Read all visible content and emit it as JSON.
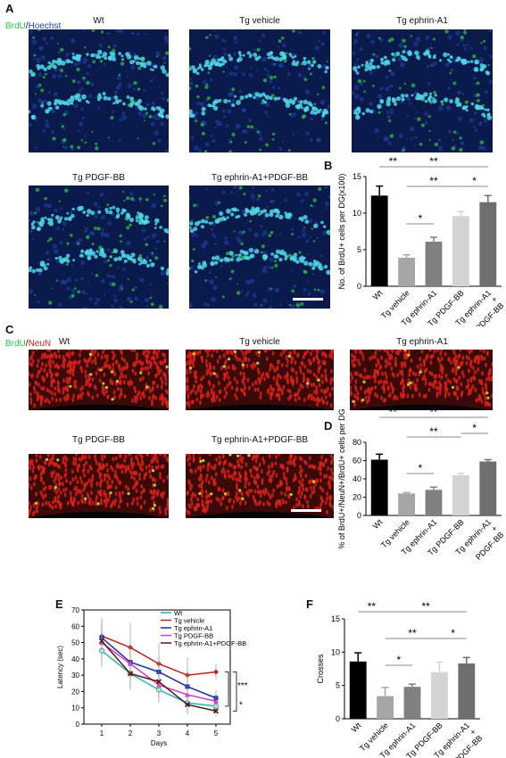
{
  "panels": {
    "A": {
      "label": "A",
      "stain": {
        "green": "BrdU",
        "sep": "/",
        "blue": "Hoechst"
      },
      "titles": [
        "Wt",
        "Tg vehicle",
        "Tg ephrin-A1",
        "Tg PDGF-BB",
        "Tg ephrin-A1+PDGF-BB"
      ]
    },
    "C": {
      "label": "C",
      "stain": {
        "green": "BrdU",
        "sep": "/",
        "red": "NeuN"
      },
      "titles": [
        "Wt",
        "Tg vehicle",
        "Tg ephrin-A1",
        "Tg PDGF-BB",
        "Tg ephrin-A1+PDGF-BB"
      ]
    },
    "B": {
      "label": "B"
    },
    "D": {
      "label": "D"
    },
    "E": {
      "label": "E"
    },
    "F": {
      "label": "F"
    }
  },
  "colors": {
    "hoechst_bg": "#0a1a4a",
    "brdu_green": "#2ecc40",
    "neun_red": "#d8201a",
    "bar_colors": [
      "#000000",
      "#a6a6a6",
      "#808080",
      "#d4d4d4",
      "#6e6e6e"
    ]
  },
  "chart_data": [
    {
      "id": "B",
      "type": "bar",
      "categories": [
        "Wt",
        "Tg vehicle",
        "Tg ephrin-A1",
        "Tg PDGF-BB",
        "Tg ephrin-A1\n+\nPDGF-BB"
      ],
      "values": [
        12.4,
        3.9,
        6.1,
        9.6,
        11.5
      ],
      "errors": [
        1.3,
        0.4,
        0.6,
        0.6,
        0.9
      ],
      "ylabel": "No. of BrdU+ cells per DG(x100)",
      "ylim": [
        0,
        15
      ],
      "yticks": [
        0,
        5,
        10,
        15
      ],
      "significance": [
        {
          "from": 0,
          "to": 4,
          "label": "**"
        },
        {
          "from": 0,
          "to": 1,
          "label": "**"
        },
        {
          "from": 1,
          "to": 3,
          "label": "**"
        },
        {
          "from": 1,
          "to": 2,
          "label": "*"
        },
        {
          "from": 3,
          "to": 4,
          "label": "*"
        }
      ]
    },
    {
      "id": "D",
      "type": "bar",
      "categories": [
        "Wt",
        "Tg vehicle",
        "Tg ephrin-A1",
        "Tg PDGF-BB",
        "Tg ephrin-A1\n+\nPDGF-BB"
      ],
      "values": [
        61,
        24,
        28,
        44,
        59
      ],
      "errors": [
        6,
        1,
        3,
        2,
        2
      ],
      "ylabel": "% of BrdU+/NeuN+/BrdU+ cells per DG",
      "ylim": [
        0,
        80
      ],
      "yticks": [
        0,
        20,
        40,
        60,
        80
      ],
      "significance": [
        {
          "from": 0,
          "to": 4,
          "label": "**"
        },
        {
          "from": 0,
          "to": 1,
          "label": "**"
        },
        {
          "from": 1,
          "to": 3,
          "label": "**"
        },
        {
          "from": 1,
          "to": 2,
          "label": "*"
        },
        {
          "from": 3,
          "to": 4,
          "label": "*"
        }
      ]
    },
    {
      "id": "E",
      "type": "line",
      "x": [
        1,
        2,
        3,
        4,
        5
      ],
      "xlabel": "Days",
      "ylabel": "Latency (sec)",
      "ylim": [
        0,
        70
      ],
      "yticks": [
        0,
        10,
        20,
        30,
        40,
        50,
        60,
        70
      ],
      "series": [
        {
          "name": "Wt",
          "values": [
            45,
            31,
            21,
            13,
            11
          ],
          "errors": [
            10,
            10,
            8,
            6,
            4
          ],
          "color": "#2bb3b3",
          "marker": "circle-open"
        },
        {
          "name": "Tg vehicle",
          "values": [
            54,
            47,
            37,
            30,
            32
          ],
          "errors": [
            11,
            15,
            13,
            11,
            5
          ],
          "color": "#c0201a",
          "marker": "diamond"
        },
        {
          "name": "Tg ephrin-A1",
          "values": [
            53,
            38,
            32,
            23,
            16
          ],
          "errors": [
            10,
            10,
            9,
            8,
            5
          ],
          "color": "#1a2ea8",
          "marker": "square"
        },
        {
          "name": "Tg PDGF-BB",
          "values": [
            50,
            37,
            24,
            18,
            14
          ],
          "errors": [
            10,
            9,
            8,
            7,
            5
          ],
          "color": "#d63ac6",
          "marker": "triangle"
        },
        {
          "name": "Tg ephrin-A1+PDGF-BB",
          "values": [
            51,
            31,
            26,
            12,
            8
          ],
          "errors": [
            10,
            9,
            8,
            6,
            3
          ],
          "color": "#5a1410",
          "marker": "cross"
        }
      ],
      "annotations": [
        "***",
        "*"
      ]
    },
    {
      "id": "F",
      "type": "bar",
      "categories": [
        "Wt",
        "Tg vehicle",
        "Tg ephrin-A1",
        "Tg PDGF-BB",
        "Tg ephrin-A1\n+\nPDGF-BB"
      ],
      "values": [
        8.6,
        3.4,
        4.8,
        7.0,
        8.3
      ],
      "errors": [
        1.3,
        1.3,
        0.4,
        1.5,
        0.9
      ],
      "ylabel": "Crosses",
      "ylim": [
        0,
        15
      ],
      "yticks": [
        0,
        5,
        10,
        15
      ],
      "significance": [
        {
          "from": 0,
          "to": 1,
          "label": "**"
        },
        {
          "from": 1,
          "to": 4,
          "label": "**"
        },
        {
          "from": 1,
          "to": 3,
          "label": "**"
        },
        {
          "from": 1,
          "to": 2,
          "label": "*"
        },
        {
          "from": 3,
          "to": 4,
          "label": "*"
        }
      ]
    }
  ]
}
